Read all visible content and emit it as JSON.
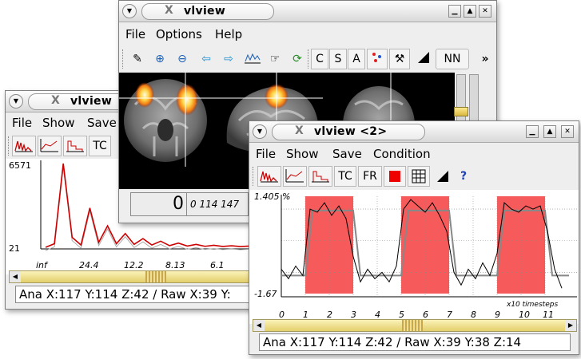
{
  "app": {
    "icon_glyph": "X"
  },
  "win_back": {
    "title": "vlview",
    "menus": [
      "File",
      "Show",
      "Save"
    ],
    "toolbar": {
      "tc": "TC"
    },
    "plot": {
      "ymax": "6571",
      "ymin": "21",
      "xticks": [
        "inf",
        "24.4",
        "12.2",
        "8.13",
        "6.1"
      ]
    },
    "status": "Ana X:117 Y:114 Z:42  /  Raw X:39 Y:"
  },
  "win_main": {
    "title": "vlview",
    "menus": [
      "File",
      "Options",
      "Help"
    ],
    "toolbar": {
      "c": "C",
      "s": "S",
      "a": "A",
      "nn": "NN",
      "more": "»"
    },
    "value_box": "0",
    "coords": "0 114 147"
  },
  "win_front": {
    "title": "vlview  <2>",
    "menus": [
      "File",
      "Show",
      "Save",
      "Condition"
    ],
    "toolbar": {
      "tc": "TC",
      "fr": "FR",
      "help": "?"
    },
    "plot": {
      "ymax": "1.405 %",
      "ymin": "-1.67",
      "xticks": [
        "0",
        "1",
        "2",
        "3",
        "4",
        "5",
        "6",
        "7",
        "8",
        "9",
        "10",
        "11"
      ],
      "xunit": "x10 timesteps"
    },
    "status": "Ana X:117 Y:114 Z:42  /  Raw X:39 Y:38 Z:14"
  },
  "colors": {
    "condition_block": "#f65a5a",
    "spectrum_line": "#cc0000",
    "highlight": "#ffd94a"
  },
  "chart_data": [
    {
      "type": "line",
      "series": [
        {
          "x": [
            0.0,
            0.3,
            0.6,
            0.9,
            1.2,
            1.5,
            1.8,
            2.1,
            2.4,
            2.7,
            3.0,
            3.3,
            3.6,
            3.9,
            4.2,
            4.5,
            4.8,
            5.1,
            5.4,
            5.7,
            6.0,
            6.3,
            6.6,
            6.9,
            7.2,
            7.5,
            7.8,
            8.1,
            8.4,
            8.7,
            9.0,
            9.3,
            9.6,
            9.9,
            10.2,
            10.5,
            10.8,
            11.1,
            11.4,
            11.7
          ],
          "y": [
            -0.9,
            -1.2,
            -0.8,
            -1.1,
            1.0,
            0.9,
            1.2,
            0.8,
            1.1,
            0.7,
            -0.5,
            -1.3,
            -0.9,
            -1.2,
            -1.0,
            -1.3,
            -0.8,
            1.0,
            1.3,
            1.1,
            0.9,
            1.2,
            0.8,
            0.3,
            -1.0,
            -1.4,
            -0.9,
            -1.2,
            -0.7,
            -1.1,
            -0.4,
            1.2,
            1.0,
            0.9,
            1.1,
            1.0,
            1.1,
            0.3,
            -0.9,
            -1.5
          ]
        },
        {
          "x": [
            0,
            1,
            1.3,
            3,
            3.3,
            5,
            5.3,
            7,
            7.3,
            9,
            9.3,
            11,
            11.3,
            12
          ],
          "y": [
            -1.1,
            -1.1,
            0.95,
            0.95,
            -1.1,
            -1.1,
            0.95,
            0.95,
            -1.1,
            -1.1,
            0.95,
            0.95,
            -1.1,
            -1.1
          ]
        }
      ],
      "xlim": [
        0,
        12
      ],
      "ylim": [
        -1.67,
        1.405
      ],
      "condition_blocks": [
        [
          1,
          3
        ],
        [
          5,
          7
        ],
        [
          9,
          11
        ]
      ]
    },
    {
      "type": "line",
      "x_ticks": [
        "inf",
        "24.4",
        "12.2",
        "8.13",
        "6.1"
      ],
      "series": [
        {
          "y": [
            21,
            300,
            6571,
            800,
            200,
            3100,
            400,
            1700,
            300,
            1100,
            250,
            700,
            200,
            500,
            150,
            350,
            120,
            250,
            100,
            180,
            90,
            140,
            80,
            120,
            70
          ]
        }
      ],
      "ylim": [
        21,
        6571
      ]
    }
  ]
}
